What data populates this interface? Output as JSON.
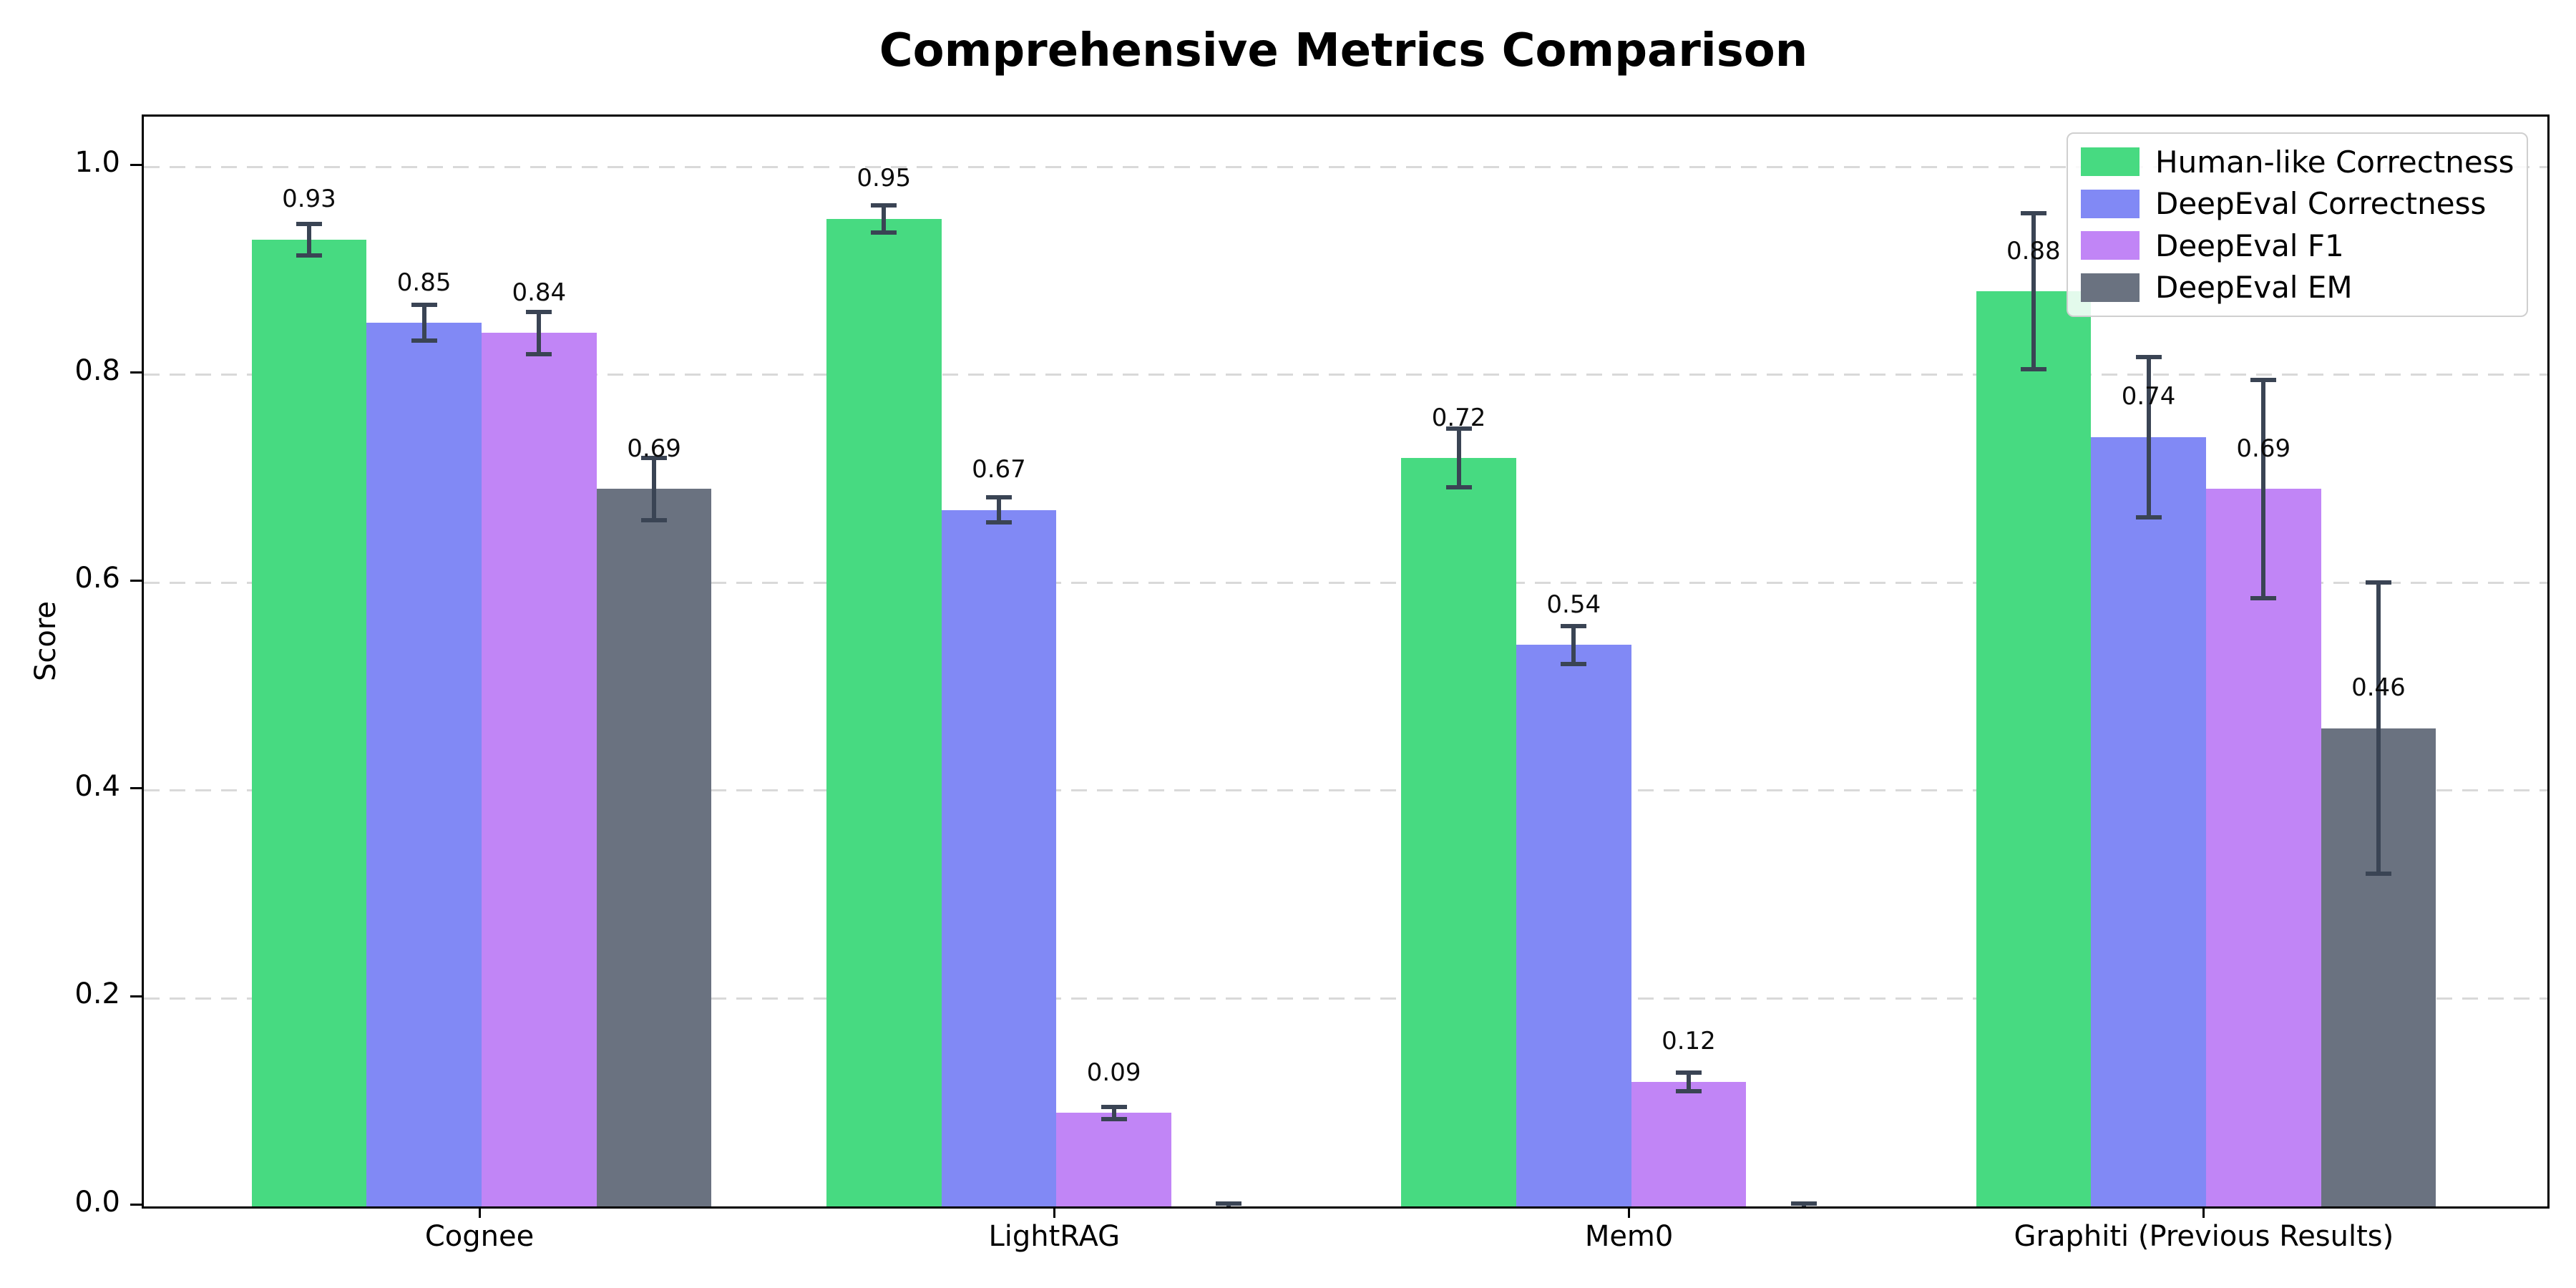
{
  "chart_data": {
    "type": "bar",
    "title": "Comprehensive Metrics Comparison",
    "ylabel": "Score",
    "categories": [
      "Cognee",
      "LightRAG",
      "Mem0",
      "Graphiti (Previous Results)"
    ],
    "series": [
      {
        "name": "Human-like Correctness",
        "color": "#47da81",
        "values": [
          0.93,
          0.95,
          0.72,
          0.88
        ],
        "errors": [
          0.015,
          0.013,
          0.028,
          0.075
        ],
        "bar_labels": [
          "0.93",
          "0.95",
          "0.72",
          "0.88"
        ]
      },
      {
        "name": "DeepEval Correctness",
        "color": "#8189f5",
        "values": [
          0.85,
          0.67,
          0.54,
          0.74
        ],
        "errors": [
          0.017,
          0.012,
          0.018,
          0.077
        ],
        "bar_labels": [
          "0.85",
          "0.67",
          "0.54",
          "0.74"
        ]
      },
      {
        "name": "DeepEval F1",
        "color": "#c185f6",
        "values": [
          0.84,
          0.09,
          0.12,
          0.69
        ],
        "errors": [
          0.02,
          0.006,
          0.009,
          0.105
        ],
        "bar_labels": [
          "0.84",
          "0.09",
          "0.12",
          "0.69"
        ]
      },
      {
        "name": "DeepEval EM",
        "color": "#6a7280",
        "values": [
          0.69,
          0.0,
          0.0,
          0.46
        ],
        "errors": [
          0.03,
          0.003,
          0.003,
          0.14
        ],
        "bar_labels": [
          "0.69",
          "",
          "",
          "0.46"
        ]
      }
    ],
    "ylim": [
      0.0,
      1.05
    ],
    "yticks": [
      "0.0",
      "0.2",
      "0.4",
      "0.6",
      "0.8",
      "1.0"
    ],
    "grid": "dashed-horizontal",
    "legend_position": "upper-right",
    "styles": {
      "error_bar_color": "#3a4454",
      "grid_color": "#d9d9d9",
      "axis_color": "#000000",
      "legend_border_color": "#cfcfcf"
    }
  }
}
